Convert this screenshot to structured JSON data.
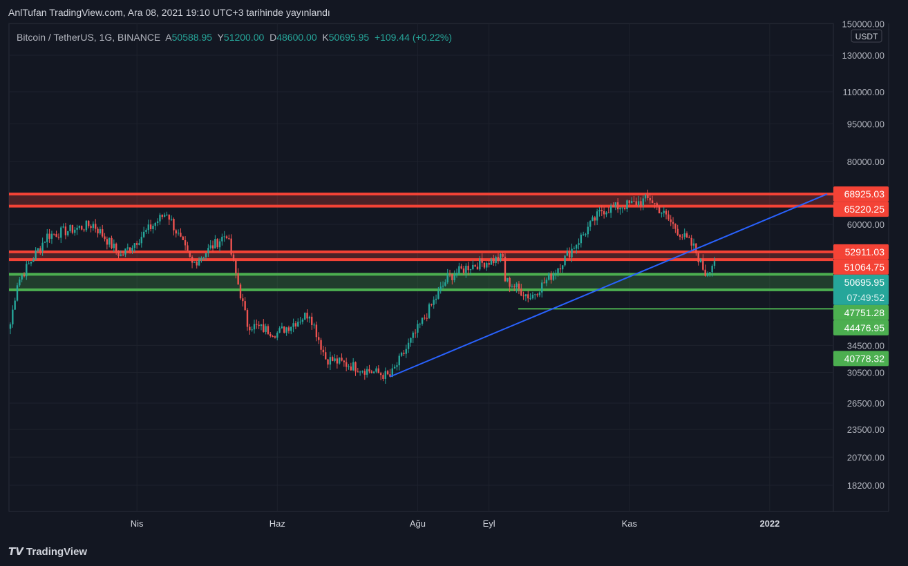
{
  "header": {
    "published": "AnlTufan TradingView.com, Ara 08, 2021 19:10 UTC+3 tarihinde yayınlandı"
  },
  "legend": {
    "symbol": "Bitcoin / TetherUS, 1G, BINANCE",
    "o_label": "A",
    "o": "50588.95",
    "h_label": "Y",
    "h": "51200.00",
    "l_label": "D",
    "l": "48600.00",
    "c_label": "K",
    "c": "50695.95",
    "change": "+109.44 (+0.22%)"
  },
  "currency": "USDT",
  "countdown": "07:49:52",
  "brand": "TradingView",
  "colors": {
    "up": "#26a69a",
    "down": "#ef5350",
    "resistance": "#f44336",
    "support": "#4caf50",
    "trend": "#2962ff",
    "bg": "#131722"
  },
  "chart_data": {
    "type": "candlestick",
    "yscale": "log",
    "ylim": [
      16500,
      155000
    ],
    "y_ticks": [
      "150000.00",
      "130000.00",
      "110000.00",
      "95000.00",
      "80000.00",
      "60000.00",
      "34500.00",
      "30500.00",
      "26500.00",
      "23500.00",
      "20700.00",
      "18200.00"
    ],
    "x_ticks": [
      {
        "label": "Nis",
        "day": 55
      },
      {
        "label": "Haz",
        "day": 116
      },
      {
        "label": "Ağu",
        "day": 177
      },
      {
        "label": "Eyl",
        "day": 208
      },
      {
        "label": "Kas",
        "day": 269
      },
      {
        "label": "2022",
        "day": 330
      }
    ],
    "close_anchors_day_price": [
      [
        0,
        38000
      ],
      [
        3,
        46000
      ],
      [
        16,
        57000
      ],
      [
        36,
        60000
      ],
      [
        48,
        52000
      ],
      [
        68,
        63500
      ],
      [
        79,
        50000
      ],
      [
        94,
        57500
      ],
      [
        97,
        50000
      ],
      [
        103,
        38000
      ],
      [
        116,
        36500
      ],
      [
        130,
        40000
      ],
      [
        137,
        32500
      ],
      [
        165,
        29900
      ],
      [
        190,
        47000
      ],
      [
        199,
        49500
      ],
      [
        214,
        51500
      ],
      [
        215,
        46500
      ],
      [
        226,
        43000
      ],
      [
        236,
        48000
      ],
      [
        257,
        64000
      ],
      [
        271,
        66000
      ],
      [
        278,
        67500
      ],
      [
        292,
        57000
      ],
      [
        297,
        54000
      ],
      [
        302,
        48000
      ],
      [
        306,
        50695.95
      ]
    ],
    "horizontal_levels": [
      {
        "price": 68925.03,
        "label": "68925.03",
        "kind": "resistance"
      },
      {
        "price": 65220.25,
        "label": "65220.25",
        "kind": "resistance"
      },
      {
        "price": 52911.03,
        "label": "52911.03",
        "kind": "resistance"
      },
      {
        "price": 51064.75,
        "label": "51064.75",
        "kind": "resistance"
      },
      {
        "price": 47751.28,
        "label": "47751.28",
        "kind": "support"
      },
      {
        "price": 44476.95,
        "label": "44476.95",
        "kind": "support"
      },
      {
        "price": 40778.32,
        "label": "40778.32",
        "kind": "support"
      }
    ],
    "last_price": {
      "price": 50695.95,
      "label": "50695.95"
    },
    "trendline": {
      "from": [
        165,
        29900
      ],
      "to": [
        355,
        68925
      ]
    }
  }
}
